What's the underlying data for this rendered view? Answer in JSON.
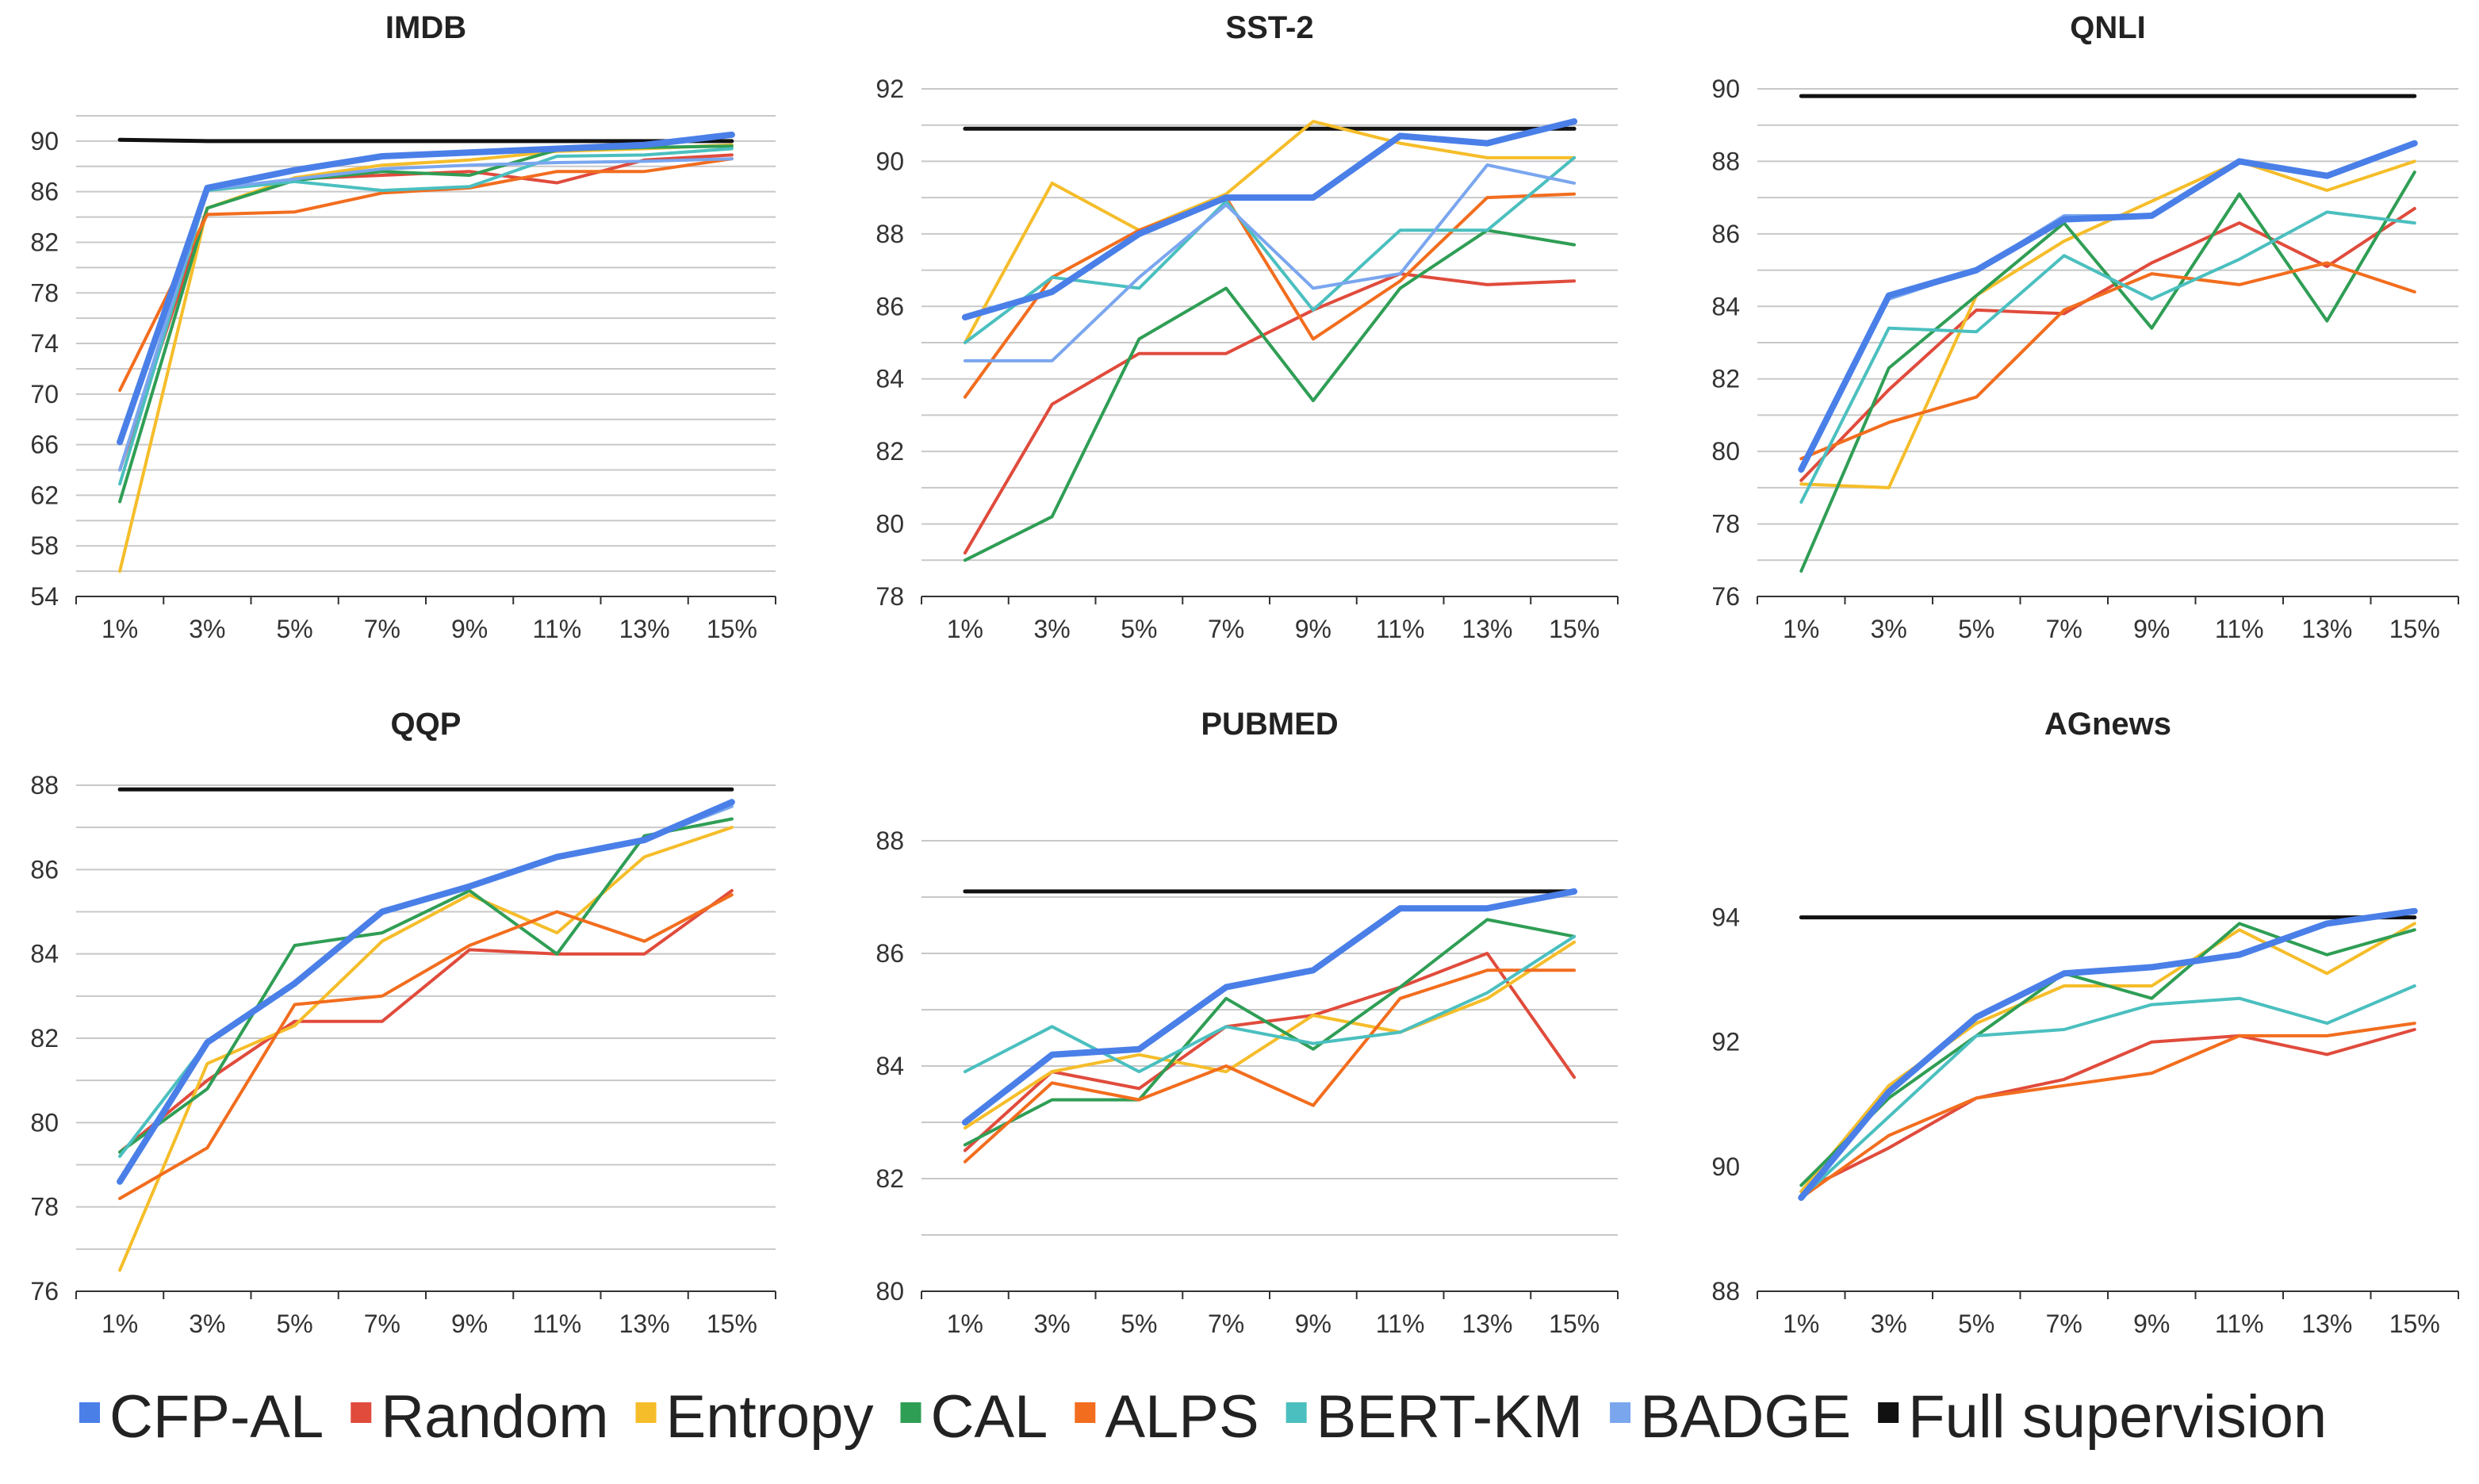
{
  "legend": [
    {
      "name": "CFP-AL",
      "color": "#4a7fe8"
    },
    {
      "name": "Random",
      "color": "#e04b3c"
    },
    {
      "name": "Entropy",
      "color": "#f5bd2a"
    },
    {
      "name": "CAL",
      "color": "#2f9e55"
    },
    {
      "name": "ALPS",
      "color": "#f26d1e"
    },
    {
      "name": "BERT-KM",
      "color": "#4bbfbf"
    },
    {
      "name": "BADGE",
      "color": "#7aa6ee"
    },
    {
      "name": "Full supervision",
      "color": "#111111"
    }
  ],
  "chart_data": [
    {
      "type": "line",
      "title": "IMDB",
      "categories": [
        "1%",
        "3%",
        "5%",
        "7%",
        "9%",
        "11%",
        "13%",
        "15%"
      ],
      "ylim": [
        54,
        92
      ],
      "yticks": [
        54,
        58,
        62,
        66,
        70,
        74,
        78,
        82,
        86,
        90
      ],
      "grid": true,
      "series": [
        {
          "name": "Full supervision",
          "values": [
            90.1,
            90.0,
            90.0,
            90.0,
            90.0,
            90.0,
            90.0,
            90.0
          ]
        },
        {
          "name": "Random",
          "values": [
            64.0,
            84.7,
            87.0,
            87.3,
            87.6,
            86.7,
            88.5,
            88.9
          ]
        },
        {
          "name": "Entropy",
          "values": [
            56.0,
            84.7,
            87.1,
            88.1,
            88.5,
            89.2,
            89.4,
            89.7
          ]
        },
        {
          "name": "CAL",
          "values": [
            61.5,
            84.7,
            86.9,
            87.6,
            87.3,
            89.3,
            89.5,
            89.6
          ]
        },
        {
          "name": "ALPS",
          "values": [
            70.3,
            84.2,
            84.4,
            85.9,
            86.3,
            87.6,
            87.6,
            88.6
          ]
        },
        {
          "name": "BERT-KM",
          "values": [
            62.9,
            86.1,
            86.8,
            86.1,
            86.4,
            88.8,
            88.9,
            89.4
          ]
        },
        {
          "name": "BADGE",
          "values": [
            64.0,
            86.2,
            87.0,
            87.8,
            88.1,
            88.3,
            88.4,
            88.6
          ]
        },
        {
          "name": "CFP-AL",
          "values": [
            66.2,
            86.3,
            87.7,
            88.8,
            89.1,
            89.4,
            89.7,
            90.5
          ]
        }
      ]
    },
    {
      "type": "line",
      "title": "SST-2",
      "categories": [
        "1%",
        "3%",
        "5%",
        "7%",
        "9%",
        "11%",
        "13%",
        "15%"
      ],
      "ylim": [
        78,
        92
      ],
      "yticks": [
        78,
        80,
        82,
        84,
        86,
        88,
        90,
        92
      ],
      "grid": true,
      "series": [
        {
          "name": "Full supervision",
          "values": [
            90.9,
            90.9,
            90.9,
            90.9,
            90.9,
            90.9,
            90.9,
            90.9
          ]
        },
        {
          "name": "Random",
          "values": [
            79.2,
            83.3,
            84.7,
            84.7,
            85.9,
            86.9,
            86.6,
            86.7
          ]
        },
        {
          "name": "Entropy",
          "values": [
            85.0,
            89.4,
            88.1,
            89.1,
            91.1,
            90.5,
            90.1,
            90.1
          ]
        },
        {
          "name": "CAL",
          "values": [
            79.0,
            80.2,
            85.1,
            86.5,
            83.4,
            86.5,
            88.1,
            87.7
          ]
        },
        {
          "name": "ALPS",
          "values": [
            83.5,
            86.8,
            88.1,
            89.0,
            85.1,
            86.7,
            89.0,
            89.1
          ]
        },
        {
          "name": "BERT-KM",
          "values": [
            85.0,
            86.8,
            86.5,
            88.9,
            85.9,
            88.1,
            88.1,
            90.1
          ]
        },
        {
          "name": "BADGE",
          "values": [
            84.5,
            84.5,
            86.8,
            88.8,
            86.5,
            86.9,
            89.9,
            89.4
          ]
        },
        {
          "name": "CFP-AL",
          "values": [
            85.7,
            86.4,
            88.0,
            89.0,
            89.0,
            90.7,
            90.5,
            91.1
          ]
        }
      ]
    },
    {
      "type": "line",
      "title": "QNLI",
      "categories": [
        "1%",
        "3%",
        "5%",
        "7%",
        "9%",
        "11%",
        "13%",
        "15%"
      ],
      "ylim": [
        76,
        90
      ],
      "yticks": [
        76,
        78,
        80,
        82,
        84,
        86,
        88,
        90
      ],
      "grid": true,
      "series": [
        {
          "name": "Full supervision",
          "values": [
            89.8,
            89.8,
            89.8,
            89.8,
            89.8,
            89.8,
            89.8,
            89.8
          ]
        },
        {
          "name": "Random",
          "values": [
            79.2,
            81.7,
            83.9,
            83.8,
            85.2,
            86.3,
            85.1,
            86.7
          ]
        },
        {
          "name": "Entropy",
          "values": [
            79.1,
            79.0,
            84.3,
            85.8,
            86.9,
            88.0,
            87.2,
            88.0
          ]
        },
        {
          "name": "CAL",
          "values": [
            76.7,
            82.3,
            84.3,
            86.3,
            83.4,
            87.1,
            83.6,
            87.7
          ]
        },
        {
          "name": "ALPS",
          "values": [
            79.8,
            80.8,
            81.5,
            83.9,
            84.9,
            84.6,
            85.2,
            84.4
          ]
        },
        {
          "name": "BERT-KM",
          "values": [
            78.6,
            83.4,
            83.3,
            85.4,
            84.2,
            85.3,
            86.6,
            86.3
          ]
        },
        {
          "name": "BADGE",
          "values": [
            79.5,
            84.2,
            85.0,
            86.5,
            86.5,
            88.0,
            87.6,
            88.5
          ]
        },
        {
          "name": "CFP-AL",
          "values": [
            79.5,
            84.3,
            85.0,
            86.4,
            86.5,
            88.0,
            87.6,
            88.5
          ]
        }
      ]
    },
    {
      "type": "line",
      "title": "QQP",
      "categories": [
        "1%",
        "3%",
        "5%",
        "7%",
        "9%",
        "11%",
        "13%",
        "15%"
      ],
      "ylim": [
        76,
        88
      ],
      "yticks": [
        76,
        78,
        80,
        82,
        84,
        86,
        88
      ],
      "grid": true,
      "series": [
        {
          "name": "Full supervision",
          "values": [
            87.9,
            87.9,
            87.9,
            87.9,
            87.9,
            87.9,
            87.9,
            87.9
          ]
        },
        {
          "name": "Random",
          "values": [
            79.3,
            81.0,
            82.4,
            82.4,
            84.1,
            84.0,
            84.0,
            85.5
          ]
        },
        {
          "name": "Entropy",
          "values": [
            76.5,
            81.4,
            82.3,
            84.3,
            85.4,
            84.5,
            86.3,
            87.0
          ]
        },
        {
          "name": "CAL",
          "values": [
            79.3,
            80.8,
            84.2,
            84.5,
            85.5,
            84.0,
            86.8,
            87.2
          ]
        },
        {
          "name": "ALPS",
          "values": [
            78.2,
            79.4,
            82.8,
            83.0,
            84.2,
            85.0,
            84.3,
            85.4
          ]
        },
        {
          "name": "BERT-KM",
          "values": [
            79.2,
            81.9,
            83.3,
            85.0,
            85.6,
            86.3,
            86.7,
            87.5
          ]
        },
        {
          "name": "BADGE",
          "values": [
            78.6,
            81.9,
            83.3,
            85.0,
            85.6,
            86.3,
            86.7,
            87.5
          ]
        },
        {
          "name": "CFP-AL",
          "values": [
            78.6,
            81.9,
            83.3,
            85.0,
            85.6,
            86.3,
            86.7,
            87.6
          ]
        }
      ]
    },
    {
      "type": "line",
      "title": "PUBMED",
      "categories": [
        "1%",
        "3%",
        "5%",
        "7%",
        "9%",
        "11%",
        "13%",
        "15%"
      ],
      "ylim": [
        80,
        88
      ],
      "yticks": [
        80,
        82,
        84,
        86,
        88
      ],
      "grid": true,
      "series": [
        {
          "name": "Full supervision",
          "values": [
            87.1,
            87.1,
            87.1,
            87.1,
            87.1,
            87.1,
            87.1,
            87.1
          ]
        },
        {
          "name": "Random",
          "values": [
            82.5,
            83.9,
            83.6,
            84.7,
            84.9,
            85.4,
            86.0,
            83.8
          ]
        },
        {
          "name": "Entropy",
          "values": [
            82.9,
            83.9,
            84.2,
            83.9,
            84.9,
            84.6,
            85.2,
            86.2
          ]
        },
        {
          "name": "CAL",
          "values": [
            82.6,
            83.4,
            83.4,
            85.2,
            84.3,
            85.4,
            86.6,
            86.3
          ]
        },
        {
          "name": "ALPS",
          "values": [
            82.3,
            83.7,
            83.4,
            84.0,
            83.3,
            85.2,
            85.7,
            85.7
          ]
        },
        {
          "name": "BERT-KM",
          "values": [
            83.9,
            84.7,
            83.9,
            84.7,
            84.4,
            84.6,
            85.3,
            86.3
          ]
        },
        {
          "name": "BADGE",
          "values": [
            83.0,
            84.2,
            84.3,
            85.4,
            85.7,
            86.8,
            86.8,
            87.1
          ]
        },
        {
          "name": "CFP-AL",
          "values": [
            83.0,
            84.2,
            84.3,
            85.4,
            85.7,
            86.8,
            86.8,
            87.1
          ]
        }
      ]
    },
    {
      "type": "line",
      "title": "AGnews",
      "categories": [
        "1%",
        "3%",
        "5%",
        "7%",
        "9%",
        "11%",
        "13%",
        "15%"
      ],
      "ylim": [
        88,
        95
      ],
      "yticks": [
        88,
        90,
        92,
        94
      ],
      "grid": false,
      "series": [
        {
          "name": "Full supervision",
          "values": [
            94.0,
            94.0,
            94.0,
            94.0,
            94.0,
            94.0,
            94.0,
            94.0
          ]
        },
        {
          "name": "Random",
          "values": [
            89.6,
            90.3,
            91.1,
            91.4,
            92.0,
            92.1,
            91.8,
            92.2
          ]
        },
        {
          "name": "Entropy",
          "values": [
            89.6,
            91.3,
            92.3,
            92.9,
            92.9,
            93.8,
            93.1,
            93.9
          ]
        },
        {
          "name": "CAL",
          "values": [
            89.7,
            91.1,
            92.1,
            93.1,
            92.7,
            93.9,
            93.4,
            93.8
          ]
        },
        {
          "name": "ALPS",
          "values": [
            89.5,
            90.5,
            91.1,
            91.3,
            91.5,
            92.1,
            92.1,
            92.3
          ]
        },
        {
          "name": "BERT-KM",
          "values": [
            89.5,
            90.8,
            92.1,
            92.2,
            92.6,
            92.7,
            92.3,
            92.9
          ]
        },
        {
          "name": "BADGE",
          "values": [
            89.5,
            91.2,
            92.4,
            93.1,
            93.2,
            93.4,
            93.9,
            94.1
          ]
        },
        {
          "name": "CFP-AL",
          "values": [
            89.5,
            91.2,
            92.4,
            93.1,
            93.2,
            93.4,
            93.9,
            94.1
          ]
        }
      ]
    }
  ]
}
